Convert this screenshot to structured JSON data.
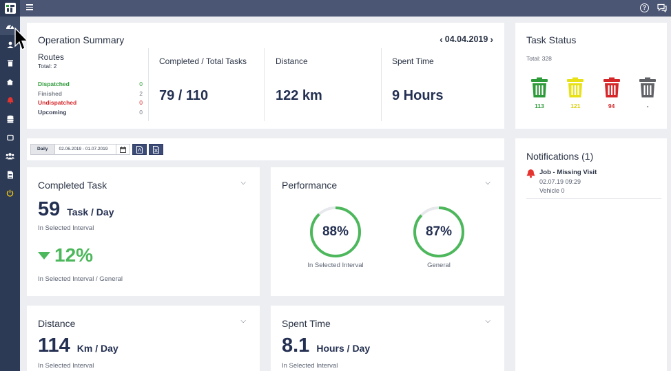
{
  "colors": {
    "sidebar": "#2c3a55",
    "topbar": "#4b5674",
    "green": "#2e9b3a",
    "yellow": "#e8e117",
    "red": "#d5272a",
    "gray": "#5f6166",
    "navy": "#243052"
  },
  "sidebar": {
    "items": [
      {
        "icon": "dashboard-icon"
      },
      {
        "icon": "user-location-icon"
      },
      {
        "icon": "trash-icon"
      },
      {
        "icon": "home-icon"
      },
      {
        "icon": "bell-icon"
      },
      {
        "icon": "database-icon"
      },
      {
        "icon": "square-icon"
      },
      {
        "icon": "users-icon"
      },
      {
        "icon": "document-icon"
      },
      {
        "icon": "power-icon"
      }
    ]
  },
  "topbar": {
    "help_icon": "help-icon",
    "chat_icon": "chat-icon",
    "help_glyph": "?"
  },
  "operation_summary": {
    "title": "Operation Summary",
    "date": "04.04.2019",
    "routes": {
      "title": "Routes",
      "total": "Total: 2",
      "items": [
        {
          "label": "Dispatched",
          "value": "0"
        },
        {
          "label": "Finished",
          "value": "2"
        },
        {
          "label": "Undispatched",
          "value": "0"
        },
        {
          "label": "Upcoming",
          "value": "0"
        }
      ]
    },
    "completed_total": {
      "label": "Completed / Total Tasks",
      "value": "79 / 110"
    },
    "distance": {
      "label": "Distance",
      "value": "122 km"
    },
    "spent_time": {
      "label": "Spent Time",
      "value": "9 Hours"
    }
  },
  "task_status": {
    "title": "Task Status",
    "total": "Total: 328",
    "bins": [
      {
        "color": "#2e9b3a",
        "value": "113"
      },
      {
        "color": "#e8e117",
        "value": "121"
      },
      {
        "color": "#d5272a",
        "value": "94"
      },
      {
        "color": "#5f6166",
        "value": "-"
      }
    ]
  },
  "filter": {
    "period": "Daily",
    "date_range": "02.06.2019 - 01.07.2019",
    "calendar_icon": "calendar-icon",
    "pdf_icon": "pdf-export-icon",
    "excel_icon": "excel-export-icon"
  },
  "completed_task": {
    "title": "Completed Task",
    "value": "59",
    "unit": "Task  /  Day",
    "interval_label": "In Selected Interval",
    "change_value": "12%",
    "change_label": "In Selected Interval / General"
  },
  "performance": {
    "title": "Performance",
    "selected": {
      "value": "88%",
      "fraction": 0.88,
      "label": "In Selected Interval"
    },
    "general": {
      "value": "87%",
      "fraction": 0.87,
      "label": "General"
    }
  },
  "distance_card": {
    "title": "Distance",
    "value": "114",
    "unit": "Km /  Day",
    "interval_label": "In Selected Interval"
  },
  "spent_card": {
    "title": "Spent Time",
    "value": "8.1",
    "unit": "Hours  /  Day",
    "interval_label": "In Selected Interval"
  },
  "notifications": {
    "title": "Notifications (1)",
    "items": [
      {
        "title": "Job - Missing Visit",
        "date": "02.07.19 09:29",
        "vehicle": "Vehicle 0"
      }
    ]
  }
}
